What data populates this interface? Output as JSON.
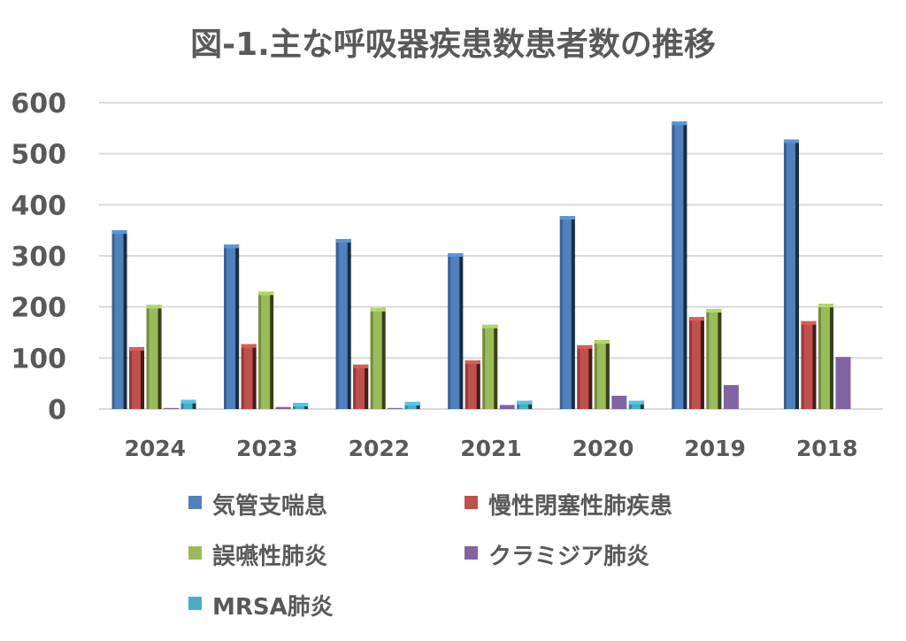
{
  "chart_data": {
    "type": "bar",
    "title": "図-1.主な呼吸器疾患数患者数の推移",
    "xlabel": "",
    "ylabel": "",
    "ylim": [
      0,
      600
    ],
    "yticks": [
      0,
      100,
      200,
      300,
      400,
      500,
      600
    ],
    "grid": true,
    "legend_position": "bottom",
    "categories": [
      "2024",
      "2023",
      "2022",
      "2021",
      "2020",
      "2019",
      "2018"
    ],
    "series": [
      {
        "name": "気管支喘息",
        "color": "#4F81BD",
        "values": [
          350,
          322,
          333,
          305,
          378,
          563,
          528
        ]
      },
      {
        "name": "慢性閉塞性肺疾患",
        "color": "#C0504D",
        "values": [
          121,
          127,
          87,
          95,
          125,
          180,
          172
        ]
      },
      {
        "name": "誤嚥性肺炎",
        "color": "#9BBB59",
        "values": [
          204,
          230,
          198,
          165,
          135,
          196,
          206
        ]
      },
      {
        "name": "クラミジア肺炎",
        "color": "#8064A2",
        "values": [
          2,
          4,
          2,
          8,
          26,
          47,
          102
        ]
      },
      {
        "name": "MRSA肺炎",
        "color": "#4BACC6",
        "values": [
          18,
          12,
          14,
          16,
          16,
          null,
          null
        ]
      }
    ]
  }
}
